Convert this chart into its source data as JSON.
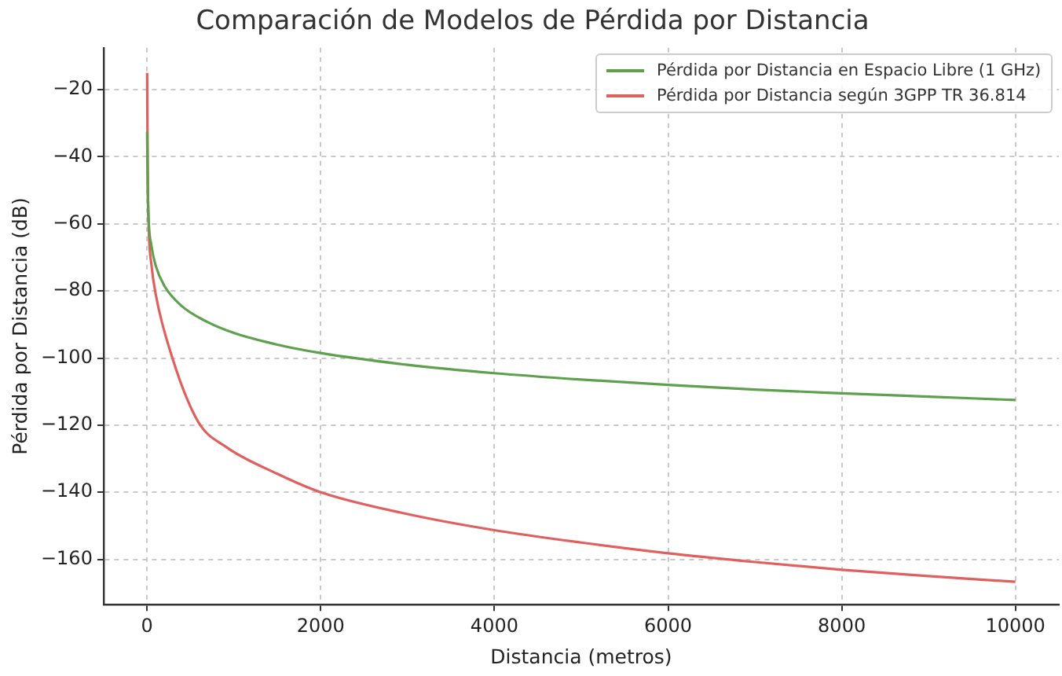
{
  "chart_data": {
    "type": "line",
    "title": "Comparación de Modelos de Pérdida por Distancia",
    "xlabel": "Distancia (metros)",
    "ylabel": "Pérdida por Distancia (dB)",
    "xlim": [
      -500,
      10500
    ],
    "ylim": [
      -173.5,
      -7.5
    ],
    "xticks": [
      0,
      2000,
      4000,
      6000,
      8000,
      10000
    ],
    "yticks": [
      {
        "value": -20,
        "label": "−20"
      },
      {
        "value": -40,
        "label": "−40"
      },
      {
        "value": -60,
        "label": "−60"
      },
      {
        "value": -80,
        "label": "−80"
      },
      {
        "value": -100,
        "label": "−100"
      },
      {
        "value": -120,
        "label": "−120"
      },
      {
        "value": -140,
        "label": "−140"
      },
      {
        "value": -160,
        "label": "−160"
      }
    ],
    "grid": true,
    "legend": "top right",
    "line_style": "solid",
    "marker": "none",
    "series": [
      {
        "name": "Pérdida por Distancia en Espacio Libre (1 GHz)",
        "color": "#5fa04e",
        "x": [
          1,
          10,
          50,
          100,
          200,
          400,
          700,
          1000,
          1500,
          2000,
          3000,
          4000,
          5000,
          6000,
          7000,
          8000,
          9000,
          10000
        ],
        "values": [
          -32.5,
          -52.5,
          -66.4,
          -72.5,
          -78.5,
          -84.5,
          -89.3,
          -92.5,
          -96,
          -98.5,
          -102,
          -104.5,
          -106.4,
          -108,
          -109.4,
          -110.5,
          -111.5,
          -112.5
        ]
      },
      {
        "name": "Pérdida por Distancia según 3GPP TR 36.814",
        "color": "#e06060",
        "x": [
          1,
          10,
          50,
          100,
          286,
          589,
          911,
          1500,
          2000,
          3000,
          4000,
          5000,
          6000,
          7000,
          8000,
          9000,
          10000
        ],
        "values": [
          -15,
          -50,
          -72,
          -81,
          -99.5,
          -119,
          -126.5,
          -134.5,
          -140,
          -146.5,
          -151.3,
          -155,
          -158.2,
          -160.8,
          -163.1,
          -165,
          -166.7
        ]
      }
    ]
  }
}
